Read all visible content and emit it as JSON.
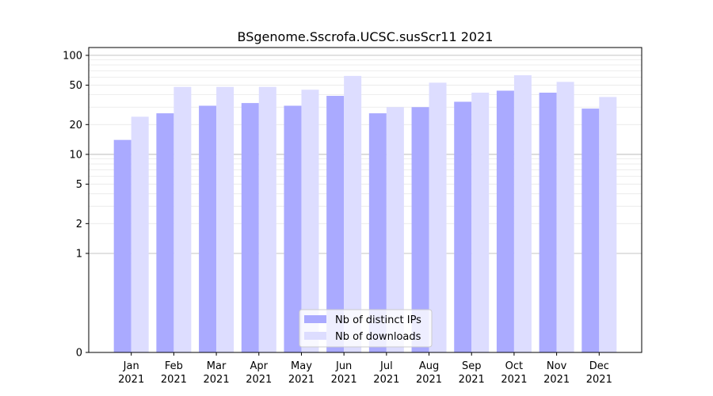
{
  "chart_data": {
    "type": "bar",
    "title": "BSgenome.Sscrofa.UCSC.susScr11 2021",
    "xlabel": "",
    "ylabel": "",
    "yscale": "symlog",
    "ylim": [
      0,
      120
    ],
    "yticks": [
      0,
      1,
      2,
      5,
      10,
      20,
      50,
      100
    ],
    "ytick_labels": [
      "0",
      "1",
      "2",
      "5",
      "10",
      "20",
      "50",
      "100"
    ],
    "categories": [
      "Jan",
      "Feb",
      "Mar",
      "Apr",
      "May",
      "Jun",
      "Jul",
      "Aug",
      "Sep",
      "Oct",
      "Nov",
      "Dec"
    ],
    "category_sublabel": "2021",
    "series": [
      {
        "name": "Nb of distinct IPs",
        "color": "#aaaaff",
        "values": [
          14,
          26,
          31,
          33,
          31,
          39,
          26,
          30,
          34,
          44,
          42,
          29
        ]
      },
      {
        "name": "Nb of downloads",
        "color": "#ddddff",
        "values": [
          24,
          48,
          48,
          48,
          45,
          62,
          30,
          53,
          42,
          63,
          54,
          38
        ]
      }
    ],
    "grid": true,
    "legend_position": "bottom-center"
  }
}
